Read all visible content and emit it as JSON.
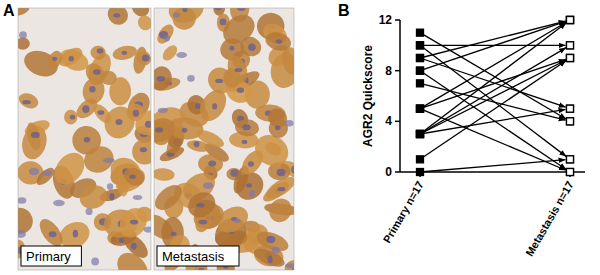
{
  "panel_labels": [
    "A",
    "B"
  ],
  "images": [
    {
      "label": "Primary"
    },
    {
      "label": "Metastasis"
    }
  ],
  "chart_data": {
    "type": "line",
    "y_label": "AGR2 Quickscore",
    "categories": [
      "Primary n=17",
      "Metastasis n=17"
    ],
    "ylim": [
      0,
      12
    ],
    "yticks": [
      0,
      4,
      8,
      12
    ],
    "marker": "square",
    "color": "#000000",
    "grid": false,
    "series": [
      {
        "values": [
          11,
          4
        ]
      },
      {
        "values": [
          10,
          10
        ]
      },
      {
        "values": [
          10,
          1
        ]
      },
      {
        "values": [
          9,
          12
        ]
      },
      {
        "values": [
          9,
          5
        ]
      },
      {
        "values": [
          8,
          0
        ]
      },
      {
        "values": [
          8,
          12
        ]
      },
      {
        "values": [
          7,
          4
        ]
      },
      {
        "values": [
          5,
          12
        ]
      },
      {
        "values": [
          5,
          9
        ]
      },
      {
        "values": [
          5,
          0
        ]
      },
      {
        "values": [
          3,
          12
        ]
      },
      {
        "values": [
          3,
          9
        ]
      },
      {
        "values": [
          3,
          5
        ]
      },
      {
        "values": [
          3,
          10
        ]
      },
      {
        "values": [
          1,
          9
        ]
      },
      {
        "values": [
          0,
          1
        ]
      }
    ]
  }
}
